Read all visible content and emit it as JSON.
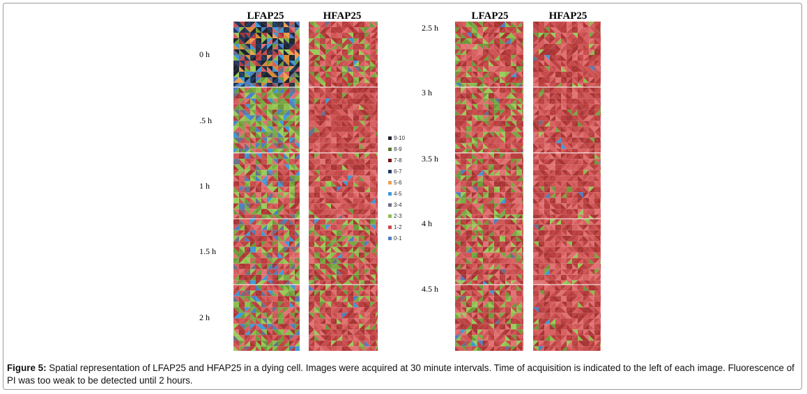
{
  "left_group": {
    "headers": [
      "LFAP25",
      "HFAP25"
    ],
    "time_labels": [
      "0 h",
      ".5 h",
      "1 h",
      "1.5 h",
      "2 h"
    ]
  },
  "right_group": {
    "headers": [
      "LFAP25",
      "HFAP25"
    ],
    "time_labels": [
      "2.5 h",
      "3 h",
      "3.5 h",
      "4 h",
      "4.5 h"
    ]
  },
  "legend": {
    "items": [
      {
        "label": "9-10",
        "color": "#1b2330"
      },
      {
        "label": "8-9",
        "color": "#5e7a2e"
      },
      {
        "label": "7-8",
        "color": "#7a1414"
      },
      {
        "label": "6-7",
        "color": "#1f3a64"
      },
      {
        "label": "5-6",
        "color": "#f0a050"
      },
      {
        "label": "4-5",
        "color": "#3f9ad8"
      },
      {
        "label": "3-4",
        "color": "#6b6f8a"
      },
      {
        "label": "2-3",
        "color": "#8cbf4e"
      },
      {
        "label": "1-2",
        "color": "#c94a4a"
      },
      {
        "label": "0-1",
        "color": "#4f7fc0"
      }
    ]
  },
  "caption": {
    "label": "Figure 5:",
    "text": " Spatial representation of LFAP25 and HFAP25 in a dying cell. Images were acquired at 30 minute intervals. Time of acquisition is indicated to the left of each image. Fluorescence of PI was too weak to be detected until 2 hours."
  }
}
